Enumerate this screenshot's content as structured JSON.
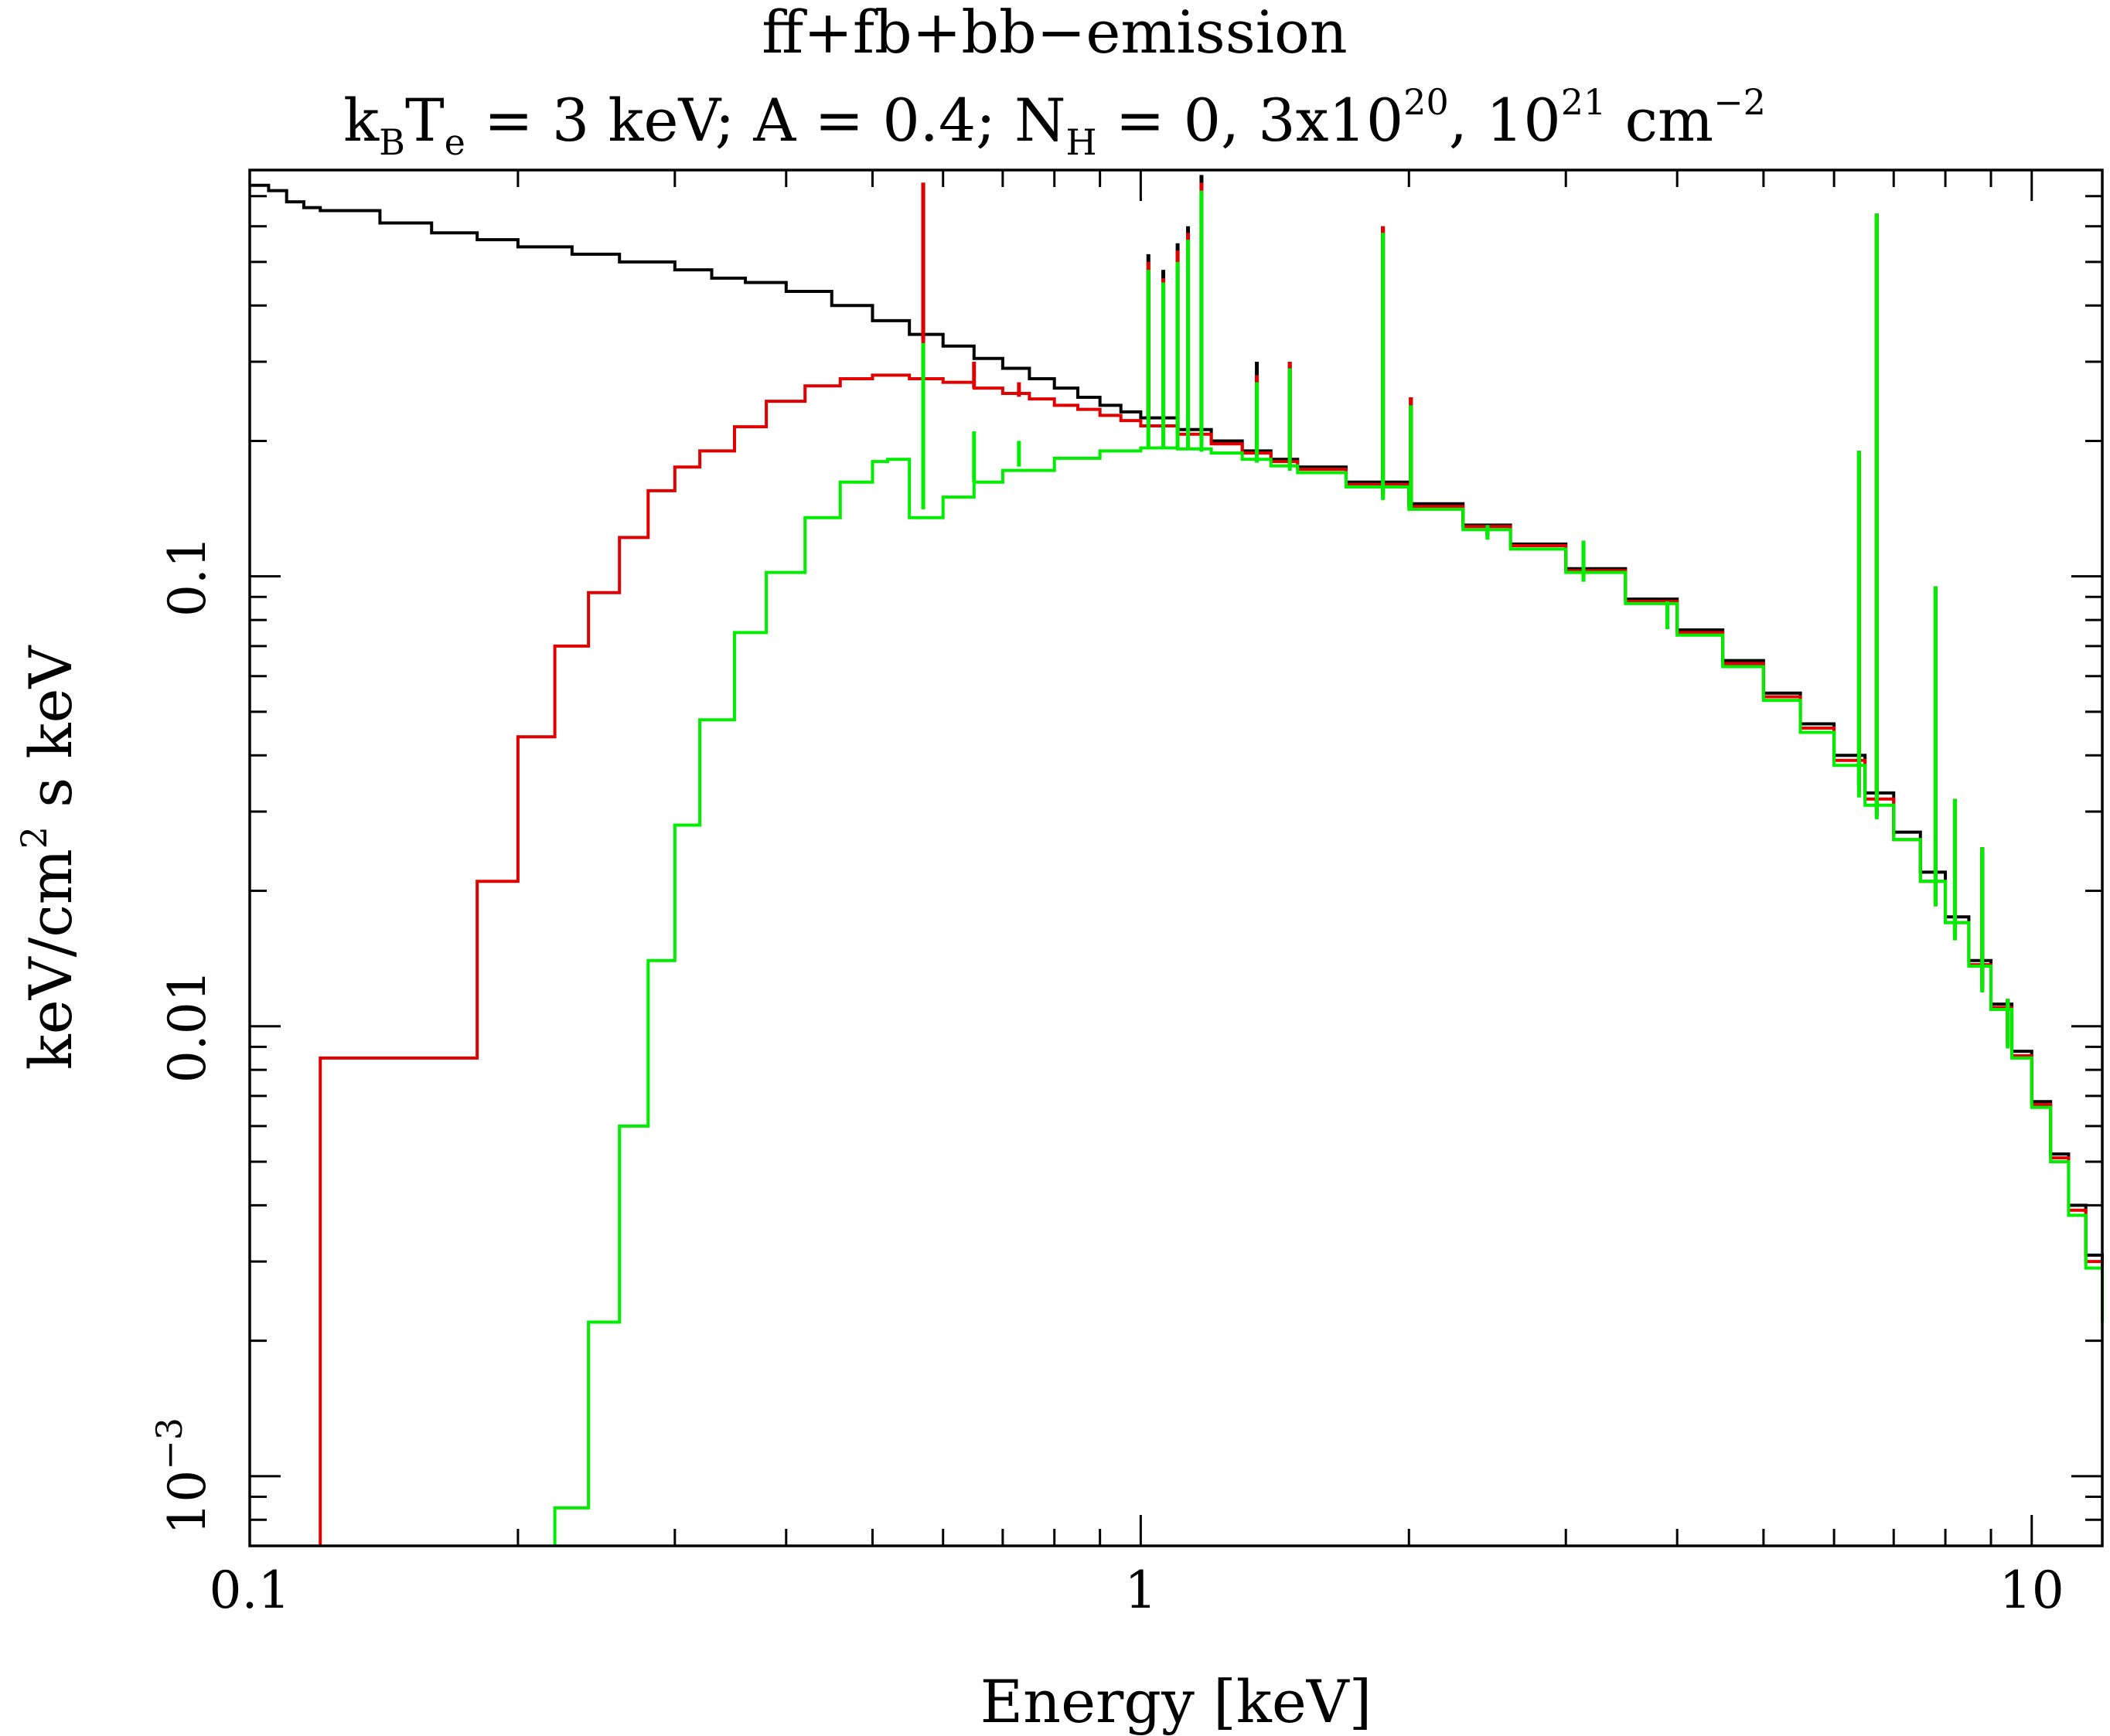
{
  "chart_data": {
    "type": "line",
    "title": "ff+fb+bb−emission",
    "subtitle": {
      "k": "k",
      "k_sub": "B",
      "T": "T",
      "T_sub": "e",
      "part1": " = 3 keV; A = 0.4; N",
      "N_sub": "H",
      "part2": " = 0, 3x10",
      "exp1": "20",
      "part3": ", 10",
      "exp2": "21",
      "part4": " cm",
      "exp3": "−2"
    },
    "xlabel": "Energy [keV]",
    "ylabel": {
      "part1": "keV/cm",
      "exp": "2",
      "part2": " s keV"
    },
    "x_scale": "log",
    "y_scale": "log",
    "xlim": [
      0.1,
      12
    ],
    "ylim": [
      0.0007,
      0.8
    ],
    "x_tick_labels": [
      {
        "value": 0.1,
        "label": "0.1"
      },
      {
        "value": 1,
        "label": "1"
      },
      {
        "value": 10,
        "label": "10"
      }
    ],
    "y_tick_labels": [
      {
        "value": 0.001,
        "base": "10",
        "exp": "−3"
      },
      {
        "value": 0.01,
        "label": "0.01"
      },
      {
        "value": 0.1,
        "label": "0.1"
      }
    ],
    "colors": {
      "nh0": "#000000",
      "nh3e20": "#e00000",
      "nh1e21": "#00ee00"
    },
    "series": [
      {
        "key": "nh0",
        "x": [
          0.1,
          0.105,
          0.11,
          0.115,
          0.12,
          0.14,
          0.16,
          0.18,
          0.2,
          0.23,
          0.26,
          0.3,
          0.33,
          0.36,
          0.4,
          0.45,
          0.5,
          0.55,
          0.6,
          0.65,
          0.7,
          0.75,
          0.8,
          0.85,
          0.9,
          0.95,
          1.0,
          1.1,
          1.2,
          1.3,
          1.4,
          1.5,
          1.7,
          2.0,
          2.3,
          2.6,
          3.0,
          3.5,
          4.0,
          4.5,
          5.0,
          5.5,
          6.0,
          6.5,
          7.0,
          7.5,
          8.0,
          8.5,
          9.0,
          9.5,
          10.0,
          10.5,
          11.0,
          11.5,
          12.0
        ],
        "y": [
          0.74,
          0.72,
          0.68,
          0.66,
          0.65,
          0.61,
          0.58,
          0.56,
          0.54,
          0.52,
          0.5,
          0.48,
          0.46,
          0.45,
          0.43,
          0.4,
          0.37,
          0.345,
          0.325,
          0.305,
          0.29,
          0.275,
          0.262,
          0.25,
          0.24,
          0.232,
          0.225,
          0.212,
          0.2,
          0.19,
          0.182,
          0.175,
          0.162,
          0.145,
          0.13,
          0.118,
          0.104,
          0.089,
          0.076,
          0.065,
          0.055,
          0.047,
          0.04,
          0.033,
          0.027,
          0.022,
          0.0175,
          0.014,
          0.0112,
          0.0088,
          0.0068,
          0.0052,
          0.004,
          0.0031,
          0.0024
        ]
      },
      {
        "key": "nh3e20",
        "x": [
          0.12,
          0.18,
          0.2,
          0.22,
          0.24,
          0.26,
          0.28,
          0.3,
          0.32,
          0.35,
          0.38,
          0.42,
          0.46,
          0.5,
          0.55,
          0.6,
          0.65,
          0.7,
          0.75,
          0.8,
          0.85,
          0.9,
          0.95,
          1.0,
          1.1,
          1.2,
          1.3,
          1.4,
          1.5,
          1.7,
          2.0,
          2.3,
          2.6,
          3.0,
          3.5,
          4.0,
          4.5,
          5.0,
          5.5,
          6.0,
          6.5,
          7.0,
          7.5,
          8.0,
          8.5,
          9.0,
          9.5,
          10.0,
          10.5,
          11.0,
          11.5,
          12.0
        ],
        "y": [
          0.0085,
          0.021,
          0.044,
          0.07,
          0.092,
          0.122,
          0.155,
          0.175,
          0.19,
          0.215,
          0.245,
          0.265,
          0.275,
          0.28,
          0.275,
          0.27,
          0.262,
          0.255,
          0.248,
          0.24,
          0.235,
          0.228,
          0.222,
          0.216,
          0.207,
          0.197,
          0.188,
          0.18,
          0.173,
          0.16,
          0.143,
          0.129,
          0.117,
          0.103,
          0.088,
          0.075,
          0.064,
          0.054,
          0.046,
          0.039,
          0.032,
          0.026,
          0.021,
          0.017,
          0.0137,
          0.011,
          0.0086,
          0.0067,
          0.0051,
          0.0039,
          0.003,
          0.0023
        ]
      },
      {
        "key": "nh1e21",
        "x": [
          0.22,
          0.24,
          0.26,
          0.28,
          0.3,
          0.32,
          0.35,
          0.38,
          0.42,
          0.46,
          0.5,
          0.52,
          0.55,
          0.6,
          0.65,
          0.7,
          0.8,
          0.9,
          1.0,
          1.1,
          1.2,
          1.3,
          1.4,
          1.5,
          1.7,
          2.0,
          2.3,
          2.6,
          3.0,
          3.5,
          4.0,
          4.5,
          5.0,
          5.5,
          6.0,
          6.5,
          7.0,
          7.5,
          8.0,
          8.5,
          9.0,
          9.5,
          10.0,
          10.5,
          11.0,
          11.5,
          12.0
        ],
        "y": [
          0.00085,
          0.0022,
          0.006,
          0.014,
          0.028,
          0.048,
          0.075,
          0.102,
          0.135,
          0.162,
          0.18,
          0.182,
          0.135,
          0.15,
          0.162,
          0.172,
          0.183,
          0.19,
          0.193,
          0.192,
          0.188,
          0.182,
          0.176,
          0.17,
          0.158,
          0.141,
          0.127,
          0.115,
          0.102,
          0.087,
          0.074,
          0.063,
          0.053,
          0.045,
          0.038,
          0.031,
          0.026,
          0.021,
          0.017,
          0.0136,
          0.0109,
          0.0085,
          0.0066,
          0.005,
          0.0038,
          0.0029,
          0.0022
        ]
      }
    ],
    "emission_lines": [
      {
        "x": 0.57,
        "y": [
          0.75,
          0.75,
          0.33
        ]
      },
      {
        "x": 0.65,
        "y": [
          0.3,
          0.3,
          0.21
        ]
      },
      {
        "x": 0.73,
        "y": [
          0.27,
          0.27,
          0.2
        ]
      },
      {
        "x": 1.02,
        "y": [
          0.52,
          0.5,
          0.48
        ]
      },
      {
        "x": 1.06,
        "y": [
          0.48,
          0.46,
          0.45
        ]
      },
      {
        "x": 1.1,
        "y": [
          0.55,
          0.53,
          0.5
        ]
      },
      {
        "x": 1.13,
        "y": [
          0.6,
          0.58,
          0.56
        ]
      },
      {
        "x": 1.17,
        "y": [
          0.78,
          0.75,
          0.72
        ]
      },
      {
        "x": 1.35,
        "y": [
          0.3,
          0.28,
          0.27
        ]
      },
      {
        "x": 1.47,
        "y": [
          0.3,
          0.3,
          0.29
        ]
      },
      {
        "x": 1.87,
        "y": [
          0.6,
          0.6,
          0.58
        ]
      },
      {
        "x": 2.01,
        "y": [
          0.25,
          0.25,
          0.24
        ]
      },
      {
        "x": 2.45,
        "y": [
          0.13,
          0.13,
          0.13
        ]
      },
      {
        "x": 3.14,
        "y": [
          0.12,
          0.12,
          0.12
        ]
      },
      {
        "x": 3.9,
        "y": [
          0.088,
          0.088,
          0.088
        ]
      },
      {
        "x": 6.4,
        "y": [
          0.19,
          0.19,
          0.19
        ]
      },
      {
        "x": 6.7,
        "y": [
          0.64,
          0.64,
          0.64
        ]
      },
      {
        "x": 7.8,
        "y": [
          0.095,
          0.095,
          0.095
        ]
      },
      {
        "x": 8.2,
        "y": [
          0.032,
          0.032,
          0.032
        ]
      },
      {
        "x": 8.8,
        "y": [
          0.025,
          0.025,
          0.025
        ]
      },
      {
        "x": 9.4,
        "y": [
          0.0115,
          0.0115,
          0.0115
        ]
      }
    ]
  }
}
